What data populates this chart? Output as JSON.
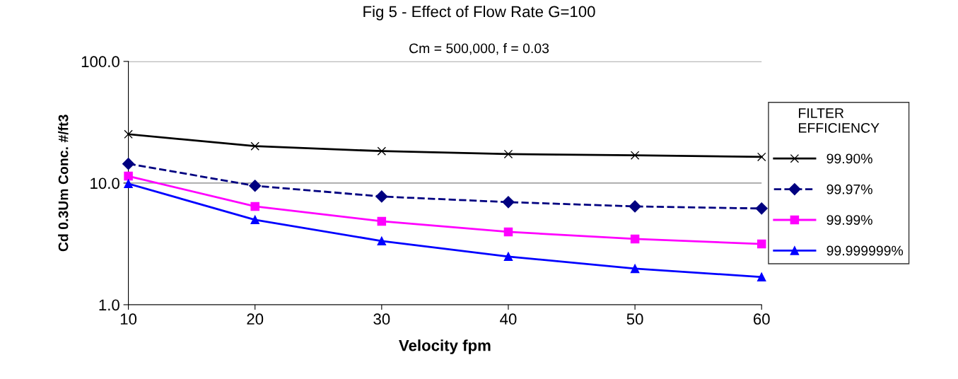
{
  "chart_data": {
    "type": "line",
    "title": "Fig 5 - Effect of Flow Rate G=100",
    "subtitle": "Cm = 500,000, f = 0.03",
    "xlabel": "Velocity fpm",
    "ylabel": "Cd 0.3Um Conc. #/ft3",
    "legend_title": "FILTER\nEFFICIENCY",
    "x": [
      10,
      20,
      30,
      40,
      50,
      60
    ],
    "series": [
      {
        "name": "99.90%",
        "color": "#000000",
        "marker": "cross",
        "line_style": "solid",
        "values": [
          25.2,
          20.1,
          18.3,
          17.3,
          16.9,
          16.4
        ]
      },
      {
        "name": "99.97%",
        "color": "#000080",
        "marker": "diamond",
        "line_style": "dashed",
        "values": [
          14.4,
          9.5,
          7.75,
          6.97,
          6.43,
          6.18
        ]
      },
      {
        "name": "99.99%",
        "color": "#ff00ff",
        "marker": "square",
        "line_style": "solid",
        "values": [
          11.4,
          6.43,
          4.85,
          3.97,
          3.47,
          3.16
        ]
      },
      {
        "name": "99.999999%",
        "color": "#0000ff",
        "marker": "triangle",
        "line_style": "solid",
        "values": [
          9.87,
          4.99,
          3.34,
          2.49,
          1.98,
          1.69
        ]
      }
    ],
    "log": "y",
    "xlim": [
      10,
      60
    ],
    "xticks": [
      10,
      20,
      30,
      40,
      50,
      60
    ],
    "ylim": [
      1,
      100
    ],
    "yticks": [
      {
        "value": 1,
        "label": "1.0"
      },
      {
        "value": 10,
        "label": "10.0"
      },
      {
        "value": 100,
        "label": "100.0"
      }
    ],
    "grid": "y",
    "legend": "right"
  }
}
